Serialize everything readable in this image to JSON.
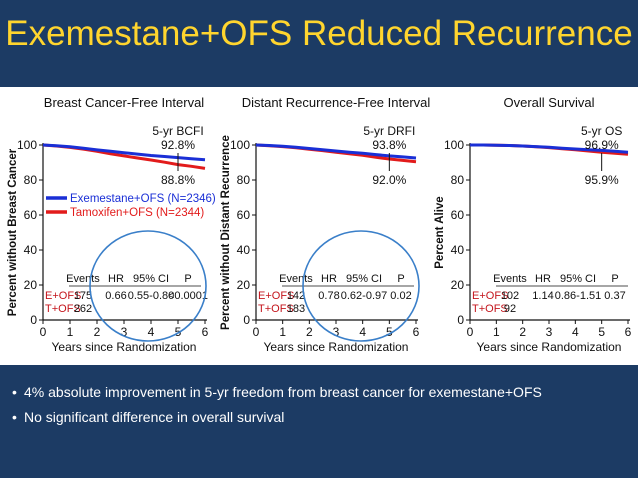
{
  "title": "Exemestane+OFS Reduced Recurrence",
  "colors": {
    "background": "#1c3b64",
    "title": "#ffd52e",
    "exemestane": "#1a2fd6",
    "tamoxifen": "#e21b1b",
    "circle": "#3a7fc9"
  },
  "chart_data": [
    {
      "type": "line",
      "title": "Breast Cancer-Free Interval",
      "xlabel": "Years since Randomization",
      "ylabel": "Percent without Breast Cancer",
      "xlim": [
        0,
        6
      ],
      "ylim": [
        0,
        100
      ],
      "xticks": [
        "0",
        "1",
        "2",
        "3",
        "4",
        "5",
        "6"
      ],
      "yticks": [
        "0",
        "20",
        "40",
        "60",
        "80",
        "100"
      ],
      "series": [
        {
          "name": "Exemestane+OFS (N=2346)",
          "color": "#1a2fd6",
          "x": [
            0,
            0.5,
            1,
            1.5,
            2,
            2.5,
            3,
            3.5,
            4,
            4.5,
            5,
            5.5,
            6
          ],
          "y": [
            100,
            99.6,
            99,
            98.2,
            97.2,
            96.4,
            95.6,
            94.8,
            94,
            93.4,
            92.8,
            92.2,
            91.6
          ]
        },
        {
          "name": "Tamoxifen+OFS (N=2344)",
          "color": "#e21b1b",
          "x": [
            0,
            0.5,
            1,
            1.5,
            2,
            2.5,
            3,
            3.5,
            4,
            4.5,
            5,
            5.5,
            6
          ],
          "y": [
            100,
            99.4,
            98.6,
            97.6,
            96.4,
            95,
            93.8,
            92.6,
            91.4,
            90.2,
            88.8,
            87.8,
            86.6
          ]
        }
      ],
      "annotation": {
        "label": "5-yr BCFI",
        "top_value": "92.8%",
        "bottom_value": "88.8%",
        "x": 5
      },
      "legend": [
        "Exemestane+OFS (N=2346)",
        "Tamoxifen+OFS (N=2344)"
      ],
      "table": {
        "headers": [
          "Events",
          "HR",
          "95% CI",
          "P"
        ],
        "rows": [
          {
            "label": "E+OFS",
            "cells": [
              "175",
              "0.66",
              "0.55-0.80",
              "<0.0001"
            ]
          },
          {
            "label": "T+OFS",
            "cells": [
              "262",
              "",
              "",
              ""
            ]
          }
        ]
      }
    },
    {
      "type": "line",
      "title": "Distant Recurrence-Free Interval",
      "xlabel": "Years since Randomization",
      "ylabel": "Percent without Distant Recurrence",
      "xlim": [
        0,
        6
      ],
      "ylim": [
        0,
        100
      ],
      "xticks": [
        "0",
        "1",
        "2",
        "3",
        "4",
        "5",
        "6"
      ],
      "yticks": [
        "0",
        "20",
        "40",
        "60",
        "80",
        "100"
      ],
      "series": [
        {
          "name": "Exemestane+OFS",
          "color": "#1a2fd6",
          "x": [
            0,
            0.5,
            1,
            1.5,
            2,
            2.5,
            3,
            3.5,
            4,
            4.5,
            5,
            5.5,
            6
          ],
          "y": [
            100,
            99.7,
            99.3,
            98.7,
            98,
            97.3,
            96.6,
            95.9,
            95.3,
            94.5,
            93.8,
            93.2,
            92.6
          ]
        },
        {
          "name": "Tamoxifen+OFS",
          "color": "#e21b1b",
          "x": [
            0,
            0.5,
            1,
            1.5,
            2,
            2.5,
            3,
            3.5,
            4,
            4.5,
            5,
            5.5,
            6
          ],
          "y": [
            100,
            99.6,
            99.1,
            98.4,
            97.6,
            96.8,
            95.9,
            95,
            94.1,
            93,
            92,
            91.2,
            90.4
          ]
        }
      ],
      "annotation": {
        "label": "5-yr DRFI",
        "top_value": "93.8%",
        "bottom_value": "92.0%",
        "x": 5
      },
      "table": {
        "headers": [
          "Events",
          "HR",
          "95% CI",
          "P"
        ],
        "rows": [
          {
            "label": "E+OFS",
            "cells": [
              "142",
              "0.78",
              "0.62-0.97",
              "0.02"
            ]
          },
          {
            "label": "T+OFS",
            "cells": [
              "183",
              "",
              "",
              ""
            ]
          }
        ]
      }
    },
    {
      "type": "line",
      "title": "Overall Survival",
      "xlabel": "Years since Randomization",
      "ylabel": "Percent Alive",
      "xlim": [
        0,
        6
      ],
      "ylim": [
        0,
        100
      ],
      "xticks": [
        "0",
        "1",
        "2",
        "3",
        "4",
        "5",
        "6"
      ],
      "yticks": [
        "0",
        "20",
        "40",
        "60",
        "80",
        "100"
      ],
      "series": [
        {
          "name": "Exemestane+OFS",
          "color": "#1a2fd6",
          "x": [
            0,
            0.5,
            1,
            1.5,
            2,
            2.5,
            3,
            3.5,
            4,
            4.5,
            5,
            5.5,
            6
          ],
          "y": [
            100,
            100,
            99.9,
            99.7,
            99.4,
            99.1,
            98.7,
            98.2,
            97.7,
            97.3,
            96.9,
            96.4,
            95.9
          ]
        },
        {
          "name": "Tamoxifen+OFS",
          "color": "#e21b1b",
          "x": [
            0,
            0.5,
            1,
            1.5,
            2,
            2.5,
            3,
            3.5,
            4,
            4.5,
            5,
            5.5,
            6
          ],
          "y": [
            100,
            100,
            99.9,
            99.7,
            99.4,
            99.0,
            98.5,
            97.9,
            97.3,
            96.6,
            95.9,
            95.3,
            94.7
          ]
        }
      ],
      "annotation": {
        "label": "5-yr OS",
        "top_value": "96.9%",
        "bottom_value": "95.9%",
        "x": 5
      },
      "table": {
        "headers": [
          "Events",
          "HR",
          "95% CI",
          "P"
        ],
        "rows": [
          {
            "label": "E+OFS",
            "cells": [
              "102",
              "1.14",
              "0.86-1.51",
              "0.37"
            ]
          },
          {
            "label": "T+OFS",
            "cells": [
              "92",
              "",
              "",
              ""
            ]
          }
        ]
      }
    }
  ],
  "bullets": [
    "4% absolute improvement in 5-yr freedom from breast cancer for exemestane+OFS",
    "No significant difference in overall survival"
  ]
}
